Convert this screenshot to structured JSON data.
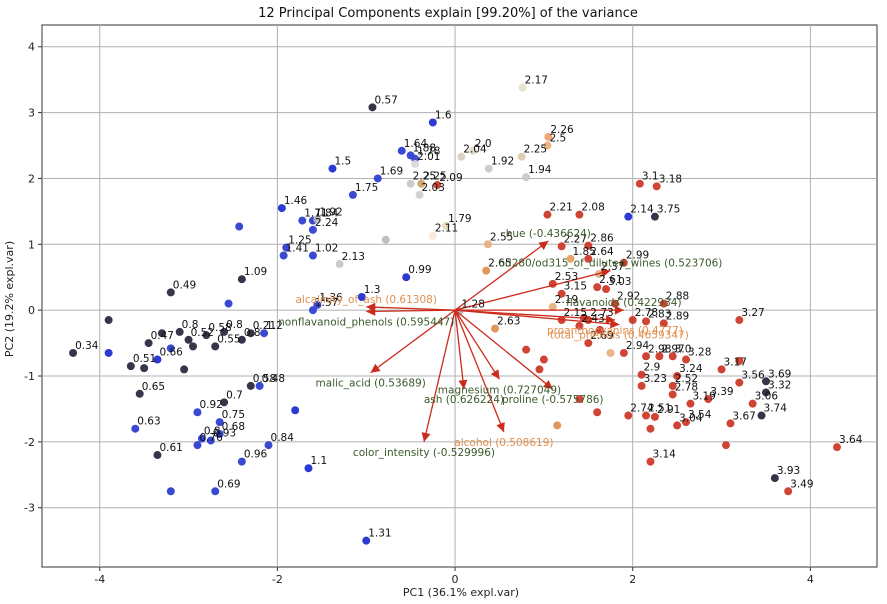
{
  "chart_data": {
    "type": "scatter",
    "title": "12 Principal Components explain [99.20%] of the variance",
    "xlabel": "PC1 (36.1% expl.var)",
    "ylabel": "PC2 (19.2% expl.var)",
    "xlim": [
      -4.65,
      4.75
    ],
    "ylim": [
      -3.9,
      4.33
    ],
    "xticks": [
      -4,
      -2,
      0,
      2,
      4
    ],
    "yticks": [
      -3,
      -2,
      -1,
      0,
      1,
      2,
      3,
      4
    ],
    "grid": true,
    "colors": {
      "low": "#1f2fd0",
      "mid": "#cfd0d6",
      "high": "#cc3a2a",
      "arrow": "#cc2a1a",
      "label_dark": "#3b5a2a",
      "label_orange": "#e09050"
    },
    "points": [
      {
        "x": -0.93,
        "y": 3.08,
        "label": "0.57",
        "c": "#2b2b40"
      },
      {
        "x": -0.25,
        "y": 2.85,
        "label": "1.6",
        "c": "#1f2fd0"
      },
      {
        "x": 0.76,
        "y": 3.38,
        "label": "2.17",
        "c": "#e8e2c8"
      },
      {
        "x": 1.05,
        "y": 2.63,
        "label": "2.26",
        "c": "#f0a070"
      },
      {
        "x": 1.04,
        "y": 2.5,
        "label": "2.5",
        "c": "#e8b080"
      },
      {
        "x": 0.2,
        "y": 2.42,
        "label": "2.0",
        "c": "#e0d8c8"
      },
      {
        "x": 0.07,
        "y": 2.33,
        "label": "2.04",
        "c": "#d8d0c0"
      },
      {
        "x": -0.6,
        "y": 2.42,
        "label": "1.64",
        "c": "#2f3fd8"
      },
      {
        "x": -0.5,
        "y": 2.35,
        "label": "1.88",
        "c": "#3040d5"
      },
      {
        "x": -0.45,
        "y": 2.3,
        "label": "1.78",
        "c": "#3b47cc"
      },
      {
        "x": -0.45,
        "y": 2.22,
        "label": "2.01",
        "c": "#d8d8d8"
      },
      {
        "x": -1.38,
        "y": 2.15,
        "label": "1.5",
        "c": "#1f2fd0"
      },
      {
        "x": 0.75,
        "y": 2.33,
        "label": "2.25",
        "c": "#e0c8b0"
      },
      {
        "x": 0.38,
        "y": 2.15,
        "label": "1.92",
        "c": "#ccc8d0"
      },
      {
        "x": 0.8,
        "y": 2.02,
        "label": "1.94",
        "c": "#c8c8c8"
      },
      {
        "x": -0.87,
        "y": 2.0,
        "label": "1.69",
        "c": "#3040d5"
      },
      {
        "x": -0.38,
        "y": 1.92,
        "label": "2.25",
        "c": "#d0a070"
      },
      {
        "x": -0.5,
        "y": 1.92,
        "label": "2.25",
        "c": "#c8c8c8"
      },
      {
        "x": -0.2,
        "y": 1.9,
        "label": "2.09",
        "c": "#cc3a2a"
      },
      {
        "x": -0.4,
        "y": 1.75,
        "label": "2.03",
        "c": "#cfcfcf"
      },
      {
        "x": -1.15,
        "y": 1.75,
        "label": "1.75",
        "c": "#2f3fd0"
      },
      {
        "x": -1.95,
        "y": 1.55,
        "label": "1.46",
        "c": "#1f2fd0"
      },
      {
        "x": -1.6,
        "y": 1.36,
        "label": "1.84",
        "c": "#2f3fd0"
      },
      {
        "x": -1.55,
        "y": 1.38,
        "label": "1.92",
        "c": "#bcbcbc"
      },
      {
        "x": -1.72,
        "y": 1.36,
        "label": "1.71",
        "c": "#3040d5"
      },
      {
        "x": -1.6,
        "y": 1.22,
        "label": "2.24",
        "c": "#3040d5"
      },
      {
        "x": 2.08,
        "y": 1.92,
        "label": "3.1",
        "c": "#cc3a2a"
      },
      {
        "x": 2.27,
        "y": 1.88,
        "label": "3.18",
        "c": "#cc3a2a"
      },
      {
        "x": 1.04,
        "y": 1.45,
        "label": "2.21",
        "c": "#cc3a2a"
      },
      {
        "x": 1.4,
        "y": 1.45,
        "label": "2.08",
        "c": "#cc3a2a"
      },
      {
        "x": 2.25,
        "y": 1.42,
        "label": "3.75",
        "c": "#2b2b40"
      },
      {
        "x": -0.1,
        "y": 1.28,
        "label": "1.79",
        "c": "#e8d8b8"
      },
      {
        "x": 1.95,
        "y": 1.42,
        "label": "2.14",
        "c": "#1f2fd0"
      },
      {
        "x": -0.25,
        "y": 1.13,
        "label": "2.11",
        "c": "#f8e8d8"
      },
      {
        "x": -1.9,
        "y": 0.95,
        "label": "1.25",
        "c": "#2f3fd0"
      },
      {
        "x": 0.37,
        "y": 1.0,
        "label": "2.55",
        "c": "#e8b080"
      },
      {
        "x": -2.43,
        "y": 1.27,
        "label": "",
        "c": "#2f3fd0"
      },
      {
        "x": -0.78,
        "y": 1.07,
        "label": "",
        "c": "#bcbcbc"
      },
      {
        "x": 1.2,
        "y": 0.97,
        "label": "2.27",
        "c": "#cc3a2a"
      },
      {
        "x": 1.5,
        "y": 0.98,
        "label": "2.86",
        "c": "#cc3a2a"
      },
      {
        "x": -1.93,
        "y": 0.83,
        "label": "1.41",
        "c": "#2f3fd0"
      },
      {
        "x": -1.6,
        "y": 0.83,
        "label": "1.02",
        "c": "#2f3fd0"
      },
      {
        "x": -1.3,
        "y": 0.7,
        "label": "2.13",
        "c": "#c8c8c8"
      },
      {
        "x": 1.3,
        "y": 0.78,
        "label": "1.85",
        "c": "#e8a060"
      },
      {
        "x": 1.5,
        "y": 0.78,
        "label": "2.64",
        "c": "#cc3a2a"
      },
      {
        "x": 1.9,
        "y": 0.72,
        "label": "2.99",
        "c": "#cc3a2a"
      },
      {
        "x": -2.4,
        "y": 0.47,
        "label": "1.09",
        "c": "#2b2b40"
      },
      {
        "x": -0.55,
        "y": 0.5,
        "label": "0.99",
        "c": "#1f2fd0"
      },
      {
        "x": 0.35,
        "y": 0.6,
        "label": "2.65",
        "c": "#e09050"
      },
      {
        "x": 1.62,
        "y": 0.55,
        "label": "2.37",
        "c": "#e0b080"
      },
      {
        "x": -3.2,
        "y": 0.27,
        "label": "0.49",
        "c": "#2b2b40"
      },
      {
        "x": -1.05,
        "y": 0.2,
        "label": "1.3",
        "c": "#1f2fd0"
      },
      {
        "x": 1.1,
        "y": 0.4,
        "label": "2.53",
        "c": "#cc3a2a"
      },
      {
        "x": 1.6,
        "y": 0.35,
        "label": "2.61",
        "c": "#cc3a2a"
      },
      {
        "x": 1.7,
        "y": 0.32,
        "label": "3.03",
        "c": "#cc3a2a"
      },
      {
        "x": 1.2,
        "y": 0.25,
        "label": "3.15",
        "c": "#cc3a2a"
      },
      {
        "x": -1.55,
        "y": 0.08,
        "label": "1.36",
        "c": "#3040d5"
      },
      {
        "x": -1.6,
        "y": 0.0,
        "label": "1.57",
        "c": "#3040d5"
      },
      {
        "x": -2.55,
        "y": 0.1,
        "label": "",
        "c": "#2f3fd0"
      },
      {
        "x": 1.8,
        "y": 0.1,
        "label": "2.92",
        "c": "#cc3a2a"
      },
      {
        "x": 2.35,
        "y": 0.1,
        "label": "2.88",
        "c": "#cc3a2a"
      },
      {
        "x": 1.1,
        "y": 0.05,
        "label": "2.19",
        "c": "#e8b080"
      },
      {
        "x": 0.05,
        "y": -0.02,
        "label": "1.28",
        "c": "#bcbcbc"
      },
      {
        "x": 1.45,
        "y": -0.12,
        "label": "",
        "c": "#cc3a2a"
      },
      {
        "x": 1.2,
        "y": -0.15,
        "label": "2.15",
        "c": "#cc3a2a"
      },
      {
        "x": 1.5,
        "y": -0.15,
        "label": "2.73",
        "c": "#cc3a2a"
      },
      {
        "x": 1.4,
        "y": -0.24,
        "label": "2.43",
        "c": "#cc3a2a"
      },
      {
        "x": 2.0,
        "y": -0.15,
        "label": "2.78",
        "c": "#cc3a2a"
      },
      {
        "x": 2.15,
        "y": -0.17,
        "label": "2.83",
        "c": "#cc3a2a"
      },
      {
        "x": 2.35,
        "y": -0.2,
        "label": "2.89",
        "c": "#cc3a2a"
      },
      {
        "x": 3.2,
        "y": -0.15,
        "label": "3.27",
        "c": "#cc3a2a"
      },
      {
        "x": 0.45,
        "y": -0.28,
        "label": "2.63",
        "c": "#e09050"
      },
      {
        "x": 1.63,
        "y": -0.3,
        "label": "",
        "c": "#cc3a2a"
      },
      {
        "x": -3.9,
        "y": -0.15,
        "label": "",
        "c": "#2b2b40"
      },
      {
        "x": -3.1,
        "y": -0.33,
        "label": "0.8",
        "c": "#2b2b40"
      },
      {
        "x": -2.8,
        "y": -0.38,
        "label": "0.58",
        "c": "#2b2b40"
      },
      {
        "x": -2.6,
        "y": -0.33,
        "label": "0.8",
        "c": "#2b2b40"
      },
      {
        "x": -2.3,
        "y": -0.35,
        "label": "0.21",
        "c": "#2b2b40"
      },
      {
        "x": -2.15,
        "y": -0.35,
        "label": "1.2",
        "c": "#2f3fd0"
      },
      {
        "x": -2.4,
        "y": -0.45,
        "label": "0.8",
        "c": "#2b2b40"
      },
      {
        "x": -3.3,
        "y": -0.35,
        "label": "",
        "c": "#2b2b40"
      },
      {
        "x": -3.0,
        "y": -0.45,
        "label": "0.52",
        "c": "#2b2b40"
      },
      {
        "x": -2.95,
        "y": -0.55,
        "label": "",
        "c": "#2b2b40"
      },
      {
        "x": -2.7,
        "y": -0.55,
        "label": "0.55",
        "c": "#2b2b40"
      },
      {
        "x": -4.3,
        "y": -0.65,
        "label": "0.34",
        "c": "#2b2b40"
      },
      {
        "x": -3.9,
        "y": -0.65,
        "label": "",
        "c": "#1f2fd0"
      },
      {
        "x": -3.45,
        "y": -0.5,
        "label": "0.47",
        "c": "#2b2b40"
      },
      {
        "x": -3.2,
        "y": -0.58,
        "label": "",
        "c": "#2f3fd0"
      },
      {
        "x": -3.35,
        "y": -0.75,
        "label": "0.66",
        "c": "#1f2fd0"
      },
      {
        "x": -3.65,
        "y": -0.85,
        "label": "0.51",
        "c": "#2b2b40"
      },
      {
        "x": -3.5,
        "y": -0.88,
        "label": "",
        "c": "#2b2b40"
      },
      {
        "x": -3.05,
        "y": -0.9,
        "label": "",
        "c": "#2b2b40"
      },
      {
        "x": -2.3,
        "y": -1.15,
        "label": "0.58",
        "c": "#2b2b40"
      },
      {
        "x": -2.2,
        "y": -1.15,
        "label": "0.48",
        "c": "#2f3fd0"
      },
      {
        "x": -3.55,
        "y": -1.27,
        "label": "0.65",
        "c": "#2b2b40"
      },
      {
        "x": -2.6,
        "y": -1.4,
        "label": "0.7",
        "c": "#2b2b40"
      },
      {
        "x": -1.8,
        "y": -1.52,
        "label": "",
        "c": "#1f2fd0"
      },
      {
        "x": -2.9,
        "y": -1.55,
        "label": "0.92",
        "c": "#2f3fd0"
      },
      {
        "x": -2.65,
        "y": -1.7,
        "label": "0.75",
        "c": "#2f3fd0"
      },
      {
        "x": -3.6,
        "y": -1.8,
        "label": "0.63",
        "c": "#2f3fd0"
      },
      {
        "x": -2.65,
        "y": -1.88,
        "label": "0.68",
        "c": "#2f3fd0"
      },
      {
        "x": -2.85,
        "y": -1.95,
        "label": "0.8",
        "c": "#2f3fd0"
      },
      {
        "x": -2.75,
        "y": -1.98,
        "label": "0.93",
        "c": "#2f3fd0"
      },
      {
        "x": -2.9,
        "y": -2.05,
        "label": "0.76",
        "c": "#2f3fd0"
      },
      {
        "x": -2.1,
        "y": -2.05,
        "label": "0.84",
        "c": "#2f3fd0"
      },
      {
        "x": -3.35,
        "y": -2.2,
        "label": "0.61",
        "c": "#2b2b40"
      },
      {
        "x": -2.4,
        "y": -2.3,
        "label": "0.96",
        "c": "#2f3fd0"
      },
      {
        "x": -1.65,
        "y": -2.4,
        "label": "1.1",
        "c": "#1f2fd0"
      },
      {
        "x": -2.7,
        "y": -2.75,
        "label": "0.69",
        "c": "#2f3fd0"
      },
      {
        "x": -3.2,
        "y": -2.75,
        "label": "",
        "c": "#2f3fd0"
      },
      {
        "x": -1.0,
        "y": -3.5,
        "label": "1.31",
        "c": "#1f2fd0"
      },
      {
        "x": 0.8,
        "y": -0.6,
        "label": "",
        "c": "#cc3a2a"
      },
      {
        "x": 1.0,
        "y": -0.75,
        "label": "",
        "c": "#cc3a2a"
      },
      {
        "x": 0.95,
        "y": -0.9,
        "label": "",
        "c": "#cc3a2a"
      },
      {
        "x": 1.5,
        "y": -0.5,
        "label": "2.69",
        "c": "#cc3a2a"
      },
      {
        "x": 1.9,
        "y": -0.65,
        "label": "2.94",
        "c": "#cc3a2a"
      },
      {
        "x": 2.15,
        "y": -0.7,
        "label": "2.98",
        "c": "#cc3a2a"
      },
      {
        "x": 2.3,
        "y": -0.7,
        "label": "2.97",
        "c": "#cc3a2a"
      },
      {
        "x": 2.45,
        "y": -0.7,
        "label": "3.0",
        "c": "#cc3a2a"
      },
      {
        "x": 1.75,
        "y": -0.65,
        "label": "",
        "c": "#e8b080"
      },
      {
        "x": 2.6,
        "y": -0.75,
        "label": "3.28",
        "c": "#cc3a2a"
      },
      {
        "x": 3.2,
        "y": -0.77,
        "label": "",
        "c": "#cc3a2a"
      },
      {
        "x": 3.0,
        "y": -0.9,
        "label": "3.17",
        "c": "#cc3a2a"
      },
      {
        "x": 2.1,
        "y": -0.98,
        "label": "2.9",
        "c": "#cc3a2a"
      },
      {
        "x": 2.5,
        "y": -1.0,
        "label": "3.24",
        "c": "#cc3a2a"
      },
      {
        "x": 3.5,
        "y": -1.08,
        "label": "3.69",
        "c": "#2b2b40"
      },
      {
        "x": 3.2,
        "y": -1.1,
        "label": "3.56",
        "c": "#cc3a2a"
      },
      {
        "x": 2.1,
        "y": -1.15,
        "label": "3.23",
        "c": "#cc3a2a"
      },
      {
        "x": 2.45,
        "y": -1.15,
        "label": "2.52",
        "c": "#cc3a2a"
      },
      {
        "x": 3.5,
        "y": -1.25,
        "label": "3.32",
        "c": "#2b2b40"
      },
      {
        "x": 2.45,
        "y": -1.28,
        "label": "2.78",
        "c": "#cc3a2a"
      },
      {
        "x": 2.85,
        "y": -1.35,
        "label": "3.39",
        "c": "#cc3a2a"
      },
      {
        "x": 2.65,
        "y": -1.42,
        "label": "3.19",
        "c": "#cc3a2a"
      },
      {
        "x": 3.35,
        "y": -1.42,
        "label": "3.06",
        "c": "#cc3a2a"
      },
      {
        "x": 3.45,
        "y": -1.6,
        "label": "3.74",
        "c": "#2b2b40"
      },
      {
        "x": 1.95,
        "y": -1.6,
        "label": "2.74",
        "c": "#cc3a2a"
      },
      {
        "x": 2.15,
        "y": -1.6,
        "label": "2.51",
        "c": "#cc3a2a"
      },
      {
        "x": 2.25,
        "y": -1.62,
        "label": "2.91",
        "c": "#cc3a2a"
      },
      {
        "x": 1.4,
        "y": -1.35,
        "label": "",
        "c": "#cc3a2a"
      },
      {
        "x": 1.6,
        "y": -1.55,
        "label": "",
        "c": "#cc3a2a"
      },
      {
        "x": 2.6,
        "y": -1.7,
        "label": "3.54",
        "c": "#cc3a2a"
      },
      {
        "x": 3.1,
        "y": -1.72,
        "label": "3.67",
        "c": "#cc3a2a"
      },
      {
        "x": 2.5,
        "y": -1.75,
        "label": "3.04",
        "c": "#cc3a2a"
      },
      {
        "x": 2.2,
        "y": -1.8,
        "label": "",
        "c": "#cc3a2a"
      },
      {
        "x": 1.15,
        "y": -1.75,
        "label": "",
        "c": "#e09050"
      },
      {
        "x": 3.05,
        "y": -2.05,
        "label": "",
        "c": "#cc3a2a"
      },
      {
        "x": 4.3,
        "y": -2.08,
        "label": "3.64",
        "c": "#cc3a2a"
      },
      {
        "x": 2.2,
        "y": -2.3,
        "label": "3.14",
        "c": "#cc3a2a"
      },
      {
        "x": 3.6,
        "y": -2.55,
        "label": "3.93",
        "c": "#2b2b40"
      },
      {
        "x": 3.75,
        "y": -2.75,
        "label": "3.49",
        "c": "#cc3a2a"
      }
    ],
    "loadings": [
      {
        "name": "hue (-0.436624)",
        "x": 1.05,
        "y": 1.05,
        "color": "#3b5a2a"
      },
      {
        "name": "od280/od315_of_diluted_wines (0.523706)",
        "x": 1.75,
        "y": 0.6,
        "color": "#3b5a2a"
      },
      {
        "name": "flavanoids (0.422934)",
        "x": 1.9,
        "y": 0.0,
        "color": "#3b5a2a"
      },
      {
        "name": "alcalinity_of_ash (0.61308)",
        "x": -1.0,
        "y": 0.05,
        "color": "#e09050"
      },
      {
        "name": "nonflavanoid_phenols (0.595447)",
        "x": -1.0,
        "y": -0.02,
        "color": "#3b5a2a"
      },
      {
        "name": "proanthocyanins (0.4777)",
        "x": 1.8,
        "y": -0.15,
        "color": "#e09050"
      },
      {
        "name": "total_phenols (0.4659347)",
        "x": 1.85,
        "y": -0.22,
        "color": "#e09050"
      },
      {
        "name": "malic_acid (0.53689)",
        "x": -0.95,
        "y": -0.95,
        "color": "#3b5a2a"
      },
      {
        "name": "ash (0.626224)",
        "x": 0.1,
        "y": -1.2,
        "color": "#3b5a2a"
      },
      {
        "name": "magnesium (0.727049)",
        "x": 0.5,
        "y": -1.05,
        "color": "#3b5a2a"
      },
      {
        "name": "proline (-0.575786)",
        "x": 1.1,
        "y": -1.2,
        "color": "#3b5a2a"
      },
      {
        "name": "alcohol (0.508619)",
        "x": 0.55,
        "y": -1.85,
        "color": "#e09050"
      },
      {
        "name": "color_intensity (-0.529996)",
        "x": -0.35,
        "y": -2.0,
        "color": "#3b5a2a"
      }
    ]
  }
}
